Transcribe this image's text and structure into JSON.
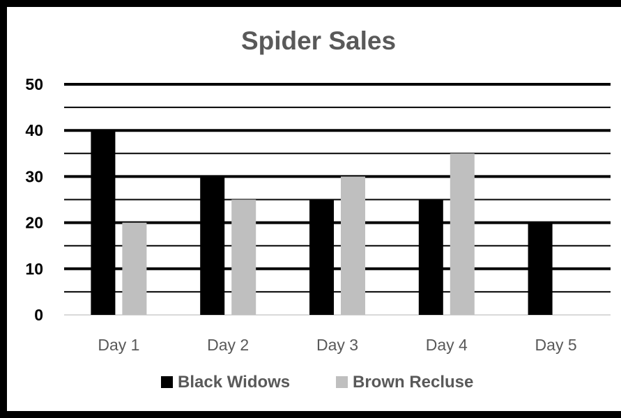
{
  "chart_data": {
    "type": "bar",
    "title": "Spider Sales",
    "xlabel": "",
    "ylabel": "",
    "categories": [
      "Day 1",
      "Day 2",
      "Day 3",
      "Day 4",
      "Day 5"
    ],
    "series": [
      {
        "name": "Black Widows",
        "values": [
          40,
          30,
          25,
          25,
          20
        ],
        "color": "#000000"
      },
      {
        "name": "Brown Recluse",
        "values": [
          20,
          25,
          30,
          35,
          null
        ],
        "color": "#bfbfbf"
      }
    ],
    "ylim": [
      0,
      50
    ],
    "yticks": [
      "0",
      "10",
      "20",
      "30",
      "40",
      "50"
    ],
    "grid": true,
    "legend": "bottom"
  }
}
